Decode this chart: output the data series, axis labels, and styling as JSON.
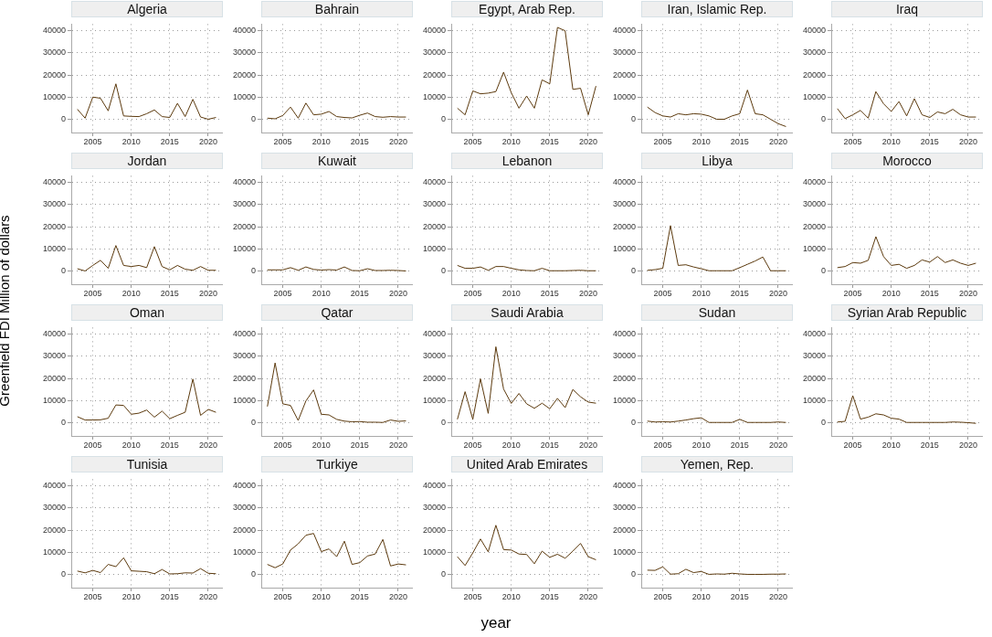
{
  "chart_data": [
    {
      "type": "line",
      "title": "Algeria",
      "x": [
        2003,
        2004,
        2005,
        2006,
        2007,
        2008,
        2009,
        2010,
        2011,
        2012,
        2013,
        2014,
        2015,
        2016,
        2017,
        2018,
        2019,
        2020,
        2021
      ],
      "values": [
        4500,
        500,
        10000,
        9500,
        3800,
        16000,
        1500,
        1300,
        1200,
        2500,
        4200,
        1200,
        800,
        7200,
        1200,
        9000,
        1000,
        0,
        800
      ],
      "color": "#5c3a0e",
      "xlim": [
        2002.2,
        2021.9
      ],
      "ylim": [
        -6000,
        43000
      ],
      "xticks": [
        2005,
        2010,
        2015,
        2020
      ],
      "yticks": [
        0,
        10000,
        20000,
        30000,
        40000
      ],
      "grid": true,
      "marker": "none"
    },
    {
      "type": "line",
      "title": "Bahrain",
      "x": [
        2003,
        2004,
        2005,
        2006,
        2007,
        2008,
        2009,
        2010,
        2011,
        2012,
        2013,
        2014,
        2015,
        2016,
        2017,
        2018,
        2019,
        2020,
        2021
      ],
      "values": [
        500,
        200,
        1700,
        5500,
        500,
        7300,
        2000,
        2300,
        3500,
        1200,
        800,
        600,
        1800,
        2800,
        1200,
        900,
        1200,
        1000,
        1000
      ],
      "color": "#5c3a0e",
      "xlim": [
        2002.2,
        2021.9
      ],
      "ylim": [
        -6000,
        43000
      ],
      "xticks": [
        2005,
        2010,
        2015,
        2020
      ],
      "yticks": [
        0,
        10000,
        20000,
        30000,
        40000
      ],
      "grid": true,
      "marker": "none"
    },
    {
      "type": "line",
      "title": "Egypt, Arab Rep.",
      "x": [
        2003,
        2004,
        2005,
        2006,
        2007,
        2008,
        2009,
        2010,
        2011,
        2012,
        2013,
        2014,
        2015,
        2016,
        2017,
        2018,
        2019,
        2020,
        2021
      ],
      "values": [
        5000,
        2000,
        12800,
        11500,
        11800,
        12500,
        21300,
        12000,
        5000,
        10500,
        5000,
        17800,
        16000,
        41500,
        40000,
        13500,
        14000,
        2000,
        15000
      ],
      "color": "#5c3a0e",
      "xlim": [
        2002.2,
        2021.9
      ],
      "ylim": [
        -6000,
        43000
      ],
      "xticks": [
        2005,
        2010,
        2015,
        2020
      ],
      "yticks": [
        0,
        10000,
        20000,
        30000,
        40000
      ],
      "grid": true,
      "marker": "none"
    },
    {
      "type": "line",
      "title": "Iran, Islamic Rep.",
      "x": [
        2003,
        2004,
        2005,
        2006,
        2007,
        2008,
        2009,
        2010,
        2011,
        2012,
        2013,
        2014,
        2015,
        2016,
        2017,
        2018,
        2019,
        2020,
        2021
      ],
      "values": [
        5500,
        3000,
        1500,
        1000,
        2500,
        2000,
        2500,
        2300,
        1500,
        0,
        0,
        1500,
        2500,
        13200,
        2500,
        2000,
        0,
        -2000,
        -3300
      ],
      "color": "#5c3a0e",
      "xlim": [
        2002.2,
        2021.9
      ],
      "ylim": [
        -6000,
        43000
      ],
      "xticks": [
        2005,
        2010,
        2015,
        2020
      ],
      "yticks": [
        0,
        10000,
        20000,
        30000,
        40000
      ],
      "grid": true,
      "marker": "none"
    },
    {
      "type": "line",
      "title": "Iraq",
      "x": [
        2003,
        2004,
        2005,
        2006,
        2007,
        2008,
        2009,
        2010,
        2011,
        2012,
        2013,
        2014,
        2015,
        2016,
        2017,
        2018,
        2019,
        2020,
        2021
      ],
      "values": [
        4800,
        300,
        2000,
        4000,
        500,
        12500,
        7000,
        3500,
        8000,
        1500,
        9300,
        2000,
        800,
        3300,
        2500,
        4500,
        2000,
        1000,
        1000
      ],
      "color": "#5c3a0e",
      "xlim": [
        2002.2,
        2021.9
      ],
      "ylim": [
        -6000,
        43000
      ],
      "xticks": [
        2005,
        2010,
        2015,
        2020
      ],
      "yticks": [
        0,
        10000,
        20000,
        30000,
        40000
      ],
      "grid": true,
      "marker": "none"
    },
    {
      "type": "line",
      "title": "Jordan",
      "x": [
        2003,
        2004,
        2005,
        2006,
        2007,
        2008,
        2009,
        2010,
        2011,
        2012,
        2013,
        2014,
        2015,
        2016,
        2017,
        2018,
        2019,
        2020,
        2021
      ],
      "values": [
        1000,
        0,
        2500,
        4800,
        1200,
        11500,
        2500,
        2000,
        2500,
        1500,
        11000,
        2000,
        500,
        2500,
        800,
        300,
        2000,
        300,
        300
      ],
      "color": "#5c3a0e",
      "xlim": [
        2002.2,
        2021.9
      ],
      "ylim": [
        -6000,
        43000
      ],
      "xticks": [
        2005,
        2010,
        2015,
        2020
      ],
      "yticks": [
        0,
        10000,
        20000,
        30000,
        40000
      ],
      "grid": true,
      "marker": "none"
    },
    {
      "type": "line",
      "title": "Kuwait",
      "x": [
        2003,
        2004,
        2005,
        2006,
        2007,
        2008,
        2009,
        2010,
        2011,
        2012,
        2013,
        2014,
        2015,
        2016,
        2017,
        2018,
        2019,
        2020,
        2021
      ],
      "values": [
        500,
        500,
        500,
        1500,
        300,
        1800,
        700,
        400,
        600,
        400,
        1800,
        200,
        100,
        1000,
        200,
        200,
        300,
        200,
        0
      ],
      "color": "#5c3a0e",
      "xlim": [
        2002.2,
        2021.9
      ],
      "ylim": [
        -6000,
        43000
      ],
      "xticks": [
        2005,
        2010,
        2015,
        2020
      ],
      "yticks": [
        0,
        10000,
        20000,
        30000,
        40000
      ],
      "grid": true,
      "marker": "none"
    },
    {
      "type": "line",
      "title": "Lebanon",
      "x": [
        2003,
        2004,
        2005,
        2006,
        2007,
        2008,
        2009,
        2010,
        2011,
        2012,
        2013,
        2014,
        2015,
        2016,
        2017,
        2018,
        2019,
        2020,
        2021
      ],
      "values": [
        2500,
        1200,
        1200,
        1800,
        300,
        2000,
        2000,
        1200,
        500,
        200,
        100,
        1200,
        100,
        100,
        100,
        200,
        300,
        100,
        100
      ],
      "color": "#5c3a0e",
      "xlim": [
        2002.2,
        2021.9
      ],
      "ylim": [
        -6000,
        43000
      ],
      "xticks": [
        2005,
        2010,
        2015,
        2020
      ],
      "yticks": [
        0,
        10000,
        20000,
        30000,
        40000
      ],
      "grid": true,
      "marker": "none"
    },
    {
      "type": "line",
      "title": "Libya",
      "x": [
        2003,
        2004,
        2005,
        2006,
        2007,
        2008,
        2009,
        2010,
        2011,
        2012,
        2013,
        2014,
        2015,
        2016,
        2017,
        2018,
        2019,
        2020,
        2021
      ],
      "values": [
        300,
        600,
        1200,
        20500,
        2500,
        2800,
        1800,
        1000,
        100,
        100,
        100,
        100,
        1500,
        3000,
        4500,
        6300,
        100,
        100,
        100
      ],
      "color": "#5c3a0e",
      "xlim": [
        2002.2,
        2021.9
      ],
      "ylim": [
        -6000,
        43000
      ],
      "xticks": [
        2005,
        2010,
        2015,
        2020
      ],
      "yticks": [
        0,
        10000,
        20000,
        30000,
        40000
      ],
      "grid": true,
      "marker": "none"
    },
    {
      "type": "line",
      "title": "Morocco",
      "x": [
        2003,
        2004,
        2005,
        2006,
        2007,
        2008,
        2009,
        2010,
        2011,
        2012,
        2013,
        2014,
        2015,
        2016,
        2017,
        2018,
        2019,
        2020,
        2021
      ],
      "values": [
        1500,
        2000,
        3800,
        3500,
        4800,
        15500,
        6500,
        2500,
        3000,
        1200,
        2500,
        5000,
        4000,
        6500,
        3800,
        5000,
        3500,
        2500,
        3500
      ],
      "color": "#5c3a0e",
      "xlim": [
        2002.2,
        2021.9
      ],
      "ylim": [
        -6000,
        43000
      ],
      "xticks": [
        2005,
        2010,
        2015,
        2020
      ],
      "yticks": [
        0,
        10000,
        20000,
        30000,
        40000
      ],
      "grid": true,
      "marker": "none"
    },
    {
      "type": "line",
      "title": "Oman",
      "ylabel": "Greenfield FDI Million of dollars",
      "x": [
        2003,
        2004,
        2005,
        2006,
        2007,
        2008,
        2009,
        2010,
        2011,
        2012,
        2013,
        2014,
        2015,
        2016,
        2017,
        2018,
        2019,
        2020,
        2021
      ],
      "values": [
        2700,
        1200,
        1200,
        1300,
        2000,
        8000,
        7800,
        3800,
        4300,
        5700,
        2500,
        5200,
        1800,
        3300,
        4700,
        19700,
        3300,
        6000,
        4700
      ],
      "color": "#5c3a0e",
      "xlim": [
        2002.2,
        2021.9
      ],
      "ylim": [
        -6000,
        43000
      ],
      "xticks": [
        2005,
        2010,
        2015,
        2020
      ],
      "yticks": [
        0,
        10000,
        20000,
        30000,
        40000
      ],
      "grid": true,
      "marker": "none"
    },
    {
      "type": "line",
      "title": "Qatar",
      "x": [
        2003,
        2004,
        2005,
        2006,
        2007,
        2008,
        2009,
        2010,
        2011,
        2012,
        2013,
        2014,
        2015,
        2016,
        2017,
        2018,
        2019,
        2020,
        2021
      ],
      "values": [
        7300,
        27000,
        8500,
        7800,
        1000,
        9800,
        14800,
        3800,
        3500,
        1500,
        700,
        400,
        500,
        200,
        200,
        100,
        1200,
        600,
        800
      ],
      "color": "#5c3a0e",
      "xlim": [
        2002.2,
        2021.9
      ],
      "ylim": [
        -6000,
        43000
      ],
      "xticks": [
        2005,
        2010,
        2015,
        2020
      ],
      "yticks": [
        0,
        10000,
        20000,
        30000,
        40000
      ],
      "grid": true,
      "marker": "none"
    },
    {
      "type": "line",
      "title": "Saudi Arabia",
      "x": [
        2003,
        2004,
        2005,
        2006,
        2007,
        2008,
        2009,
        2010,
        2011,
        2012,
        2013,
        2014,
        2015,
        2016,
        2017,
        2018,
        2019,
        2020,
        2021
      ],
      "values": [
        1500,
        14000,
        1500,
        19800,
        4200,
        34300,
        15200,
        8700,
        13200,
        8500,
        6500,
        8800,
        6300,
        11000,
        6800,
        15000,
        11700,
        9300,
        8800
      ],
      "color": "#5c3a0e",
      "xlim": [
        2002.2,
        2021.9
      ],
      "ylim": [
        -6000,
        43000
      ],
      "xticks": [
        2005,
        2010,
        2015,
        2020
      ],
      "yticks": [
        0,
        10000,
        20000,
        30000,
        40000
      ],
      "grid": true,
      "marker": "none"
    },
    {
      "type": "line",
      "title": "Sudan",
      "x": [
        2003,
        2004,
        2005,
        2006,
        2007,
        2008,
        2009,
        2010,
        2011,
        2012,
        2013,
        2014,
        2015,
        2016,
        2017,
        2018,
        2019,
        2020,
        2021
      ],
      "values": [
        700,
        300,
        400,
        300,
        700,
        1200,
        1800,
        2200,
        100,
        100,
        100,
        100,
        1500,
        100,
        100,
        100,
        100,
        300,
        100
      ],
      "color": "#5c3a0e",
      "xlim": [
        2002.2,
        2021.9
      ],
      "ylim": [
        -6000,
        43000
      ],
      "xticks": [
        2005,
        2010,
        2015,
        2020
      ],
      "yticks": [
        0,
        10000,
        20000,
        30000,
        40000
      ],
      "grid": true,
      "marker": "none"
    },
    {
      "type": "line",
      "title": "Syrian Arab Republic",
      "x": [
        2003,
        2004,
        2005,
        2006,
        2007,
        2008,
        2009,
        2010,
        2011,
        2012,
        2013,
        2014,
        2015,
        2016,
        2017,
        2018,
        2019,
        2020,
        2021
      ],
      "values": [
        300,
        600,
        12200,
        1600,
        2500,
        4000,
        3500,
        2000,
        1600,
        100,
        100,
        100,
        100,
        100,
        100,
        300,
        200,
        0,
        -300
      ],
      "color": "#5c3a0e",
      "xlim": [
        2002.2,
        2021.9
      ],
      "ylim": [
        -6000,
        43000
      ],
      "xticks": [
        2005,
        2010,
        2015,
        2020
      ],
      "yticks": [
        0,
        10000,
        20000,
        30000,
        40000
      ],
      "grid": true,
      "marker": "none"
    },
    {
      "type": "line",
      "title": "Tunisia",
      "x": [
        2003,
        2004,
        2005,
        2006,
        2007,
        2008,
        2009,
        2010,
        2011,
        2012,
        2013,
        2014,
        2015,
        2016,
        2017,
        2018,
        2019,
        2020,
        2021
      ],
      "values": [
        1500,
        700,
        1800,
        800,
        4500,
        3500,
        7500,
        1600,
        1400,
        1200,
        300,
        2200,
        200,
        300,
        700,
        600,
        2600,
        500,
        300
      ],
      "color": "#5c3a0e",
      "xlim": [
        2002.2,
        2021.9
      ],
      "ylim": [
        -6000,
        43000
      ],
      "xticks": [
        2005,
        2010,
        2015,
        2020
      ],
      "yticks": [
        0,
        10000,
        20000,
        30000,
        40000
      ],
      "grid": true,
      "marker": "none"
    },
    {
      "type": "line",
      "title": "Turkiye",
      "x": [
        2003,
        2004,
        2005,
        2006,
        2007,
        2008,
        2009,
        2010,
        2011,
        2012,
        2013,
        2014,
        2015,
        2016,
        2017,
        2018,
        2019,
        2020,
        2021
      ],
      "values": [
        4500,
        3000,
        4700,
        11000,
        13800,
        17700,
        18500,
        10300,
        11500,
        8000,
        15000,
        4500,
        5300,
        8300,
        9200,
        15800,
        3800,
        4700,
        4300
      ],
      "color": "#5c3a0e",
      "xlim": [
        2002.2,
        2021.9
      ],
      "ylim": [
        -6000,
        43000
      ],
      "xticks": [
        2005,
        2010,
        2015,
        2020
      ],
      "yticks": [
        0,
        10000,
        20000,
        30000,
        40000
      ],
      "grid": true,
      "marker": "none"
    },
    {
      "type": "line",
      "title": "United Arab Emirates",
      "xlabel": "year",
      "x": [
        2003,
        2004,
        2005,
        2006,
        2007,
        2008,
        2009,
        2010,
        2011,
        2012,
        2013,
        2014,
        2015,
        2016,
        2017,
        2018,
        2019,
        2020,
        2021
      ],
      "values": [
        8000,
        4000,
        9700,
        16000,
        10200,
        22200,
        11200,
        11000,
        9200,
        9000,
        4800,
        10500,
        7700,
        9100,
        7300,
        10500,
        14000,
        8000,
        6600
      ],
      "color": "#5c3a0e",
      "xlim": [
        2002.2,
        2021.9
      ],
      "ylim": [
        -6000,
        43000
      ],
      "xticks": [
        2005,
        2010,
        2015,
        2020
      ],
      "yticks": [
        0,
        10000,
        20000,
        30000,
        40000
      ],
      "grid": true,
      "marker": "none"
    },
    {
      "type": "line",
      "title": "Yemen, Rep.",
      "x": [
        2003,
        2004,
        2005,
        2006,
        2007,
        2008,
        2009,
        2010,
        2011,
        2012,
        2013,
        2014,
        2015,
        2016,
        2017,
        2018,
        2019,
        2020,
        2021
      ],
      "values": [
        1900,
        1800,
        3400,
        100,
        300,
        2300,
        800,
        1300,
        0,
        200,
        100,
        500,
        200,
        0,
        0,
        0,
        100,
        100,
        200
      ],
      "color": "#5c3a0e",
      "xlim": [
        2002.2,
        2021.9
      ],
      "ylim": [
        -6000,
        43000
      ],
      "xticks": [
        2005,
        2010,
        2015,
        2020
      ],
      "yticks": [
        0,
        10000,
        20000,
        30000,
        40000
      ],
      "grid": true,
      "marker": "none"
    }
  ]
}
